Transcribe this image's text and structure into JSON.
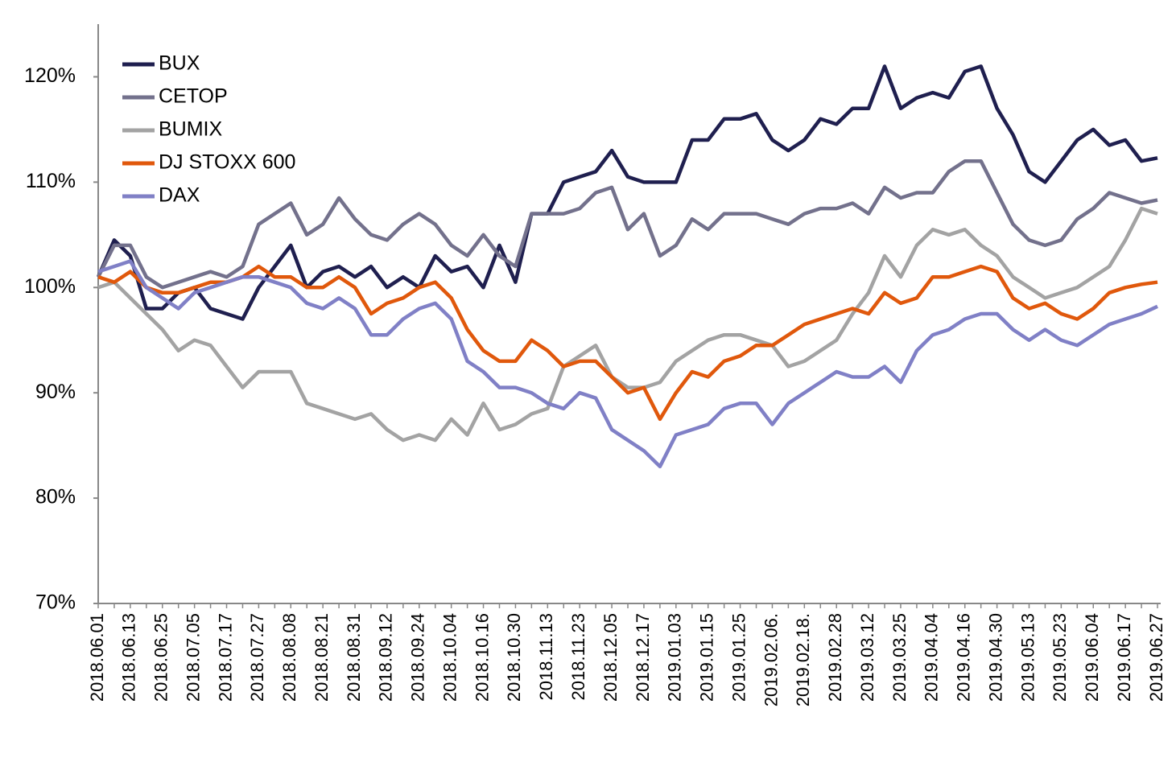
{
  "chart_data": {
    "type": "line",
    "categories": [
      "2018.06.01",
      null,
      "2018.06.13",
      null,
      "2018.06.25",
      null,
      "2018.07.05",
      null,
      "2018.07.17",
      null,
      "2018.07.27",
      null,
      "2018.08.08",
      null,
      "2018.08.21",
      null,
      "2018.08.31",
      null,
      "2018.09.12",
      null,
      "2018.09.24",
      null,
      "2018.10.04",
      null,
      "2018.10.16",
      null,
      "2018.10.30",
      null,
      "2018.11.13",
      null,
      "2018.11.23",
      null,
      "2018.12.05",
      null,
      "2018.12.17",
      null,
      "2019.01.03",
      null,
      "2019.01.15",
      null,
      "2019.01.25",
      null,
      "2019.02.06.",
      null,
      "2019.02.18.",
      null,
      "2019.02.28",
      null,
      "2019.03.12",
      null,
      "2019.03.25",
      null,
      "2019.04.04",
      null,
      "2019.04.16",
      null,
      "2019.04.30",
      null,
      "2019.05.13",
      null,
      "2019.05.23",
      null,
      "2019.06.04",
      null,
      "2019.06.17",
      null,
      "2019.06.27"
    ],
    "series": [
      {
        "name": "BUX",
        "color": "#1f1f4f",
        "values": [
          101,
          104.5,
          103,
          98,
          98,
          99.5,
          100,
          98,
          97.5,
          97,
          100,
          102,
          104,
          100,
          101.5,
          102,
          101,
          102,
          100,
          101,
          100,
          103,
          101.5,
          102,
          100,
          104,
          100.5,
          107,
          107,
          110,
          110.5,
          111,
          113,
          110.5,
          110,
          110,
          110,
          114,
          114,
          116,
          116,
          116.5,
          114,
          113,
          114,
          116,
          115.5,
          117,
          117,
          121,
          117,
          118,
          118.5,
          118,
          120.5,
          121,
          117,
          114.5,
          111,
          110,
          112,
          114,
          115,
          113.5,
          114,
          112,
          112.3
        ]
      },
      {
        "name": "CETOP",
        "color": "#73718c",
        "values": [
          101,
          104,
          104,
          101,
          100,
          100.5,
          101,
          101.5,
          101,
          102,
          106,
          107,
          108,
          105,
          106,
          108.5,
          106.5,
          105,
          104.5,
          106,
          107,
          106,
          104,
          103,
          105,
          103,
          102,
          107,
          107,
          107,
          107.5,
          109,
          109.5,
          105.5,
          107,
          103,
          104,
          106.5,
          105.5,
          107,
          107,
          107,
          106.5,
          106,
          107,
          107.5,
          107.5,
          108,
          107,
          109.5,
          108.5,
          109,
          109,
          111,
          112,
          112,
          109,
          106,
          104.5,
          104,
          104.5,
          106.5,
          107.5,
          109,
          108.5,
          108,
          108.3
        ]
      },
      {
        "name": "BUMIX",
        "color": "#a3a3a3",
        "values": [
          100,
          100.5,
          99,
          97.5,
          96,
          94,
          95,
          94.5,
          92.5,
          90.5,
          92,
          92,
          92,
          89,
          88.5,
          88,
          87.5,
          88,
          86.5,
          85.5,
          86,
          85.5,
          87.5,
          86,
          89,
          86.5,
          87,
          88,
          88.5,
          92.5,
          93.5,
          94.5,
          91.5,
          90.5,
          90.5,
          91,
          93,
          94,
          95,
          95.5,
          95.5,
          95,
          94.5,
          92.5,
          93,
          94,
          95,
          97.5,
          99.5,
          103,
          101,
          104,
          105.5,
          105,
          105.5,
          104,
          103,
          101,
          100,
          99,
          99.5,
          100,
          101,
          102,
          104.5,
          107.5,
          107
        ]
      },
      {
        "name": "DJ STOXX 600",
        "color": "#e0580c",
        "values": [
          101,
          100.5,
          101.5,
          100,
          99.5,
          99.5,
          100,
          100.5,
          100.5,
          101,
          102,
          101,
          101,
          100,
          100,
          101,
          100,
          97.5,
          98.5,
          99,
          100,
          100.5,
          99,
          96,
          94,
          93,
          93,
          95,
          94,
          92.5,
          93,
          93,
          91.5,
          90,
          90.5,
          87.5,
          90,
          92,
          91.5,
          93,
          93.5,
          94.5,
          94.5,
          95.5,
          96.5,
          97,
          97.5,
          98,
          97.5,
          99.5,
          98.5,
          99,
          101,
          101,
          101.5,
          102,
          101.5,
          99,
          98,
          98.5,
          97.5,
          97,
          98,
          99.5,
          100,
          100.3,
          100.5
        ]
      },
      {
        "name": "DAX",
        "color": "#8080c6",
        "values": [
          101.5,
          102,
          102.5,
          100,
          99,
          98,
          99.5,
          100,
          100.5,
          101,
          101,
          100.5,
          100,
          98.5,
          98,
          99,
          98,
          95.5,
          95.5,
          97,
          98,
          98.5,
          97,
          93,
          92,
          90.5,
          90.5,
          90,
          89,
          88.5,
          90,
          89.5,
          86.5,
          85.5,
          84.5,
          83,
          86,
          86.5,
          87,
          88.5,
          89,
          89,
          87,
          89,
          90,
          91,
          92,
          91.5,
          91.5,
          92.5,
          91,
          94,
          95.5,
          96,
          97,
          97.5,
          97.5,
          96,
          95,
          96,
          95,
          94.5,
          95.5,
          96.5,
          97,
          97.5,
          98.2
        ]
      }
    ],
    "ylim": [
      70,
      125
    ],
    "yticks": [
      {
        "value": 70,
        "label": "70%"
      },
      {
        "value": 80,
        "label": "80%"
      },
      {
        "value": 90,
        "label": "90%"
      },
      {
        "value": 100,
        "label": "100%"
      },
      {
        "value": 110,
        "label": "110%"
      },
      {
        "value": 120,
        "label": "120%"
      }
    ],
    "legend": "upper left",
    "grid": false
  }
}
